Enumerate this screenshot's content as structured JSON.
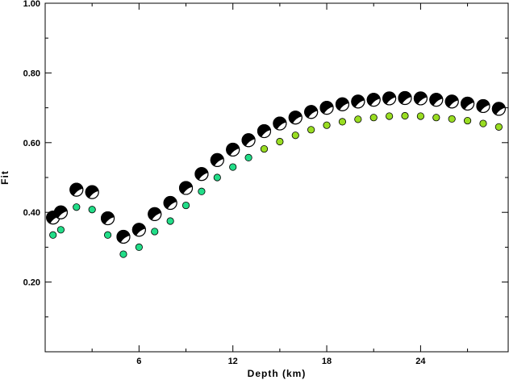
{
  "chart_data": {
    "type": "scatter",
    "xlabel": "Depth (km)",
    "ylabel": "Fit",
    "xlim": [
      0,
      29.6
    ],
    "ylim": [
      0,
      1.0
    ],
    "x_ticks": [
      6,
      12,
      18,
      24
    ],
    "y_ticks": [
      0.2,
      0.4,
      0.6,
      0.8,
      1.0
    ],
    "y_tick_labels": [
      "0.20",
      "0.40",
      "0.60",
      "0.80",
      "1.00"
    ],
    "grid": false,
    "series": [
      {
        "marker": "focal-mechanism",
        "x": [
          0.5,
          1,
          2,
          3,
          4,
          5,
          6,
          7,
          8,
          9,
          10,
          11,
          12,
          13,
          14,
          15,
          16,
          17,
          18,
          19,
          20,
          21,
          22,
          23,
          24,
          25,
          26,
          27,
          28,
          29
        ],
        "y": [
          0.385,
          0.4,
          0.465,
          0.458,
          0.383,
          0.33,
          0.35,
          0.395,
          0.427,
          0.47,
          0.51,
          0.55,
          0.58,
          0.607,
          0.633,
          0.655,
          0.672,
          0.688,
          0.7,
          0.71,
          0.718,
          0.723,
          0.727,
          0.728,
          0.727,
          0.723,
          0.718,
          0.712,
          0.705,
          0.697
        ]
      },
      {
        "marker": "dot",
        "x": [
          0.5,
          1,
          2,
          3,
          4,
          5,
          6,
          7,
          8,
          9,
          10,
          11,
          12,
          13,
          14,
          15,
          16,
          17,
          18,
          19,
          20,
          21,
          22,
          23,
          24,
          25,
          26,
          27,
          28,
          29
        ],
        "y": [
          0.335,
          0.35,
          0.415,
          0.408,
          0.335,
          0.28,
          0.3,
          0.345,
          0.375,
          0.42,
          0.46,
          0.5,
          0.53,
          0.557,
          0.582,
          0.603,
          0.621,
          0.637,
          0.65,
          0.66,
          0.667,
          0.672,
          0.676,
          0.677,
          0.676,
          0.672,
          0.668,
          0.663,
          0.655,
          0.645
        ]
      }
    ],
    "colors": {
      "beachball_fill": "#000000",
      "beachball_light": "#ffffff",
      "dot_low_fit": "#22dd88",
      "dot_high_fit": "#99dd22",
      "dot_stroke": "#000000"
    }
  }
}
